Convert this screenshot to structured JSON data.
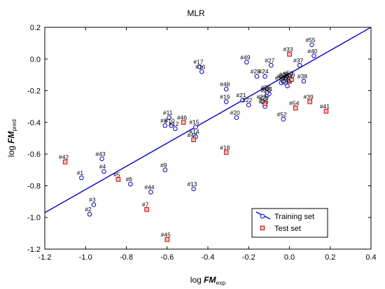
{
  "chart_data": {
    "type": "scatter",
    "title": "MLR",
    "xlabel": {
      "prefix": "log ",
      "italic": "FM",
      "sub": "exp"
    },
    "ylabel": {
      "prefix": "log ",
      "italic": "FM",
      "sub": "pred"
    },
    "xlim": [
      -1.2,
      0.4
    ],
    "ylim": [
      -1.2,
      0.2
    ],
    "xticks": [
      "-1.2",
      "-1.0",
      "-0.8",
      "-0.6",
      "-0.4",
      "-0.2",
      "0.0",
      "0.2",
      "0.4"
    ],
    "yticks": [
      "0.2",
      "0.0",
      "-0.2",
      "-0.4",
      "-0.6",
      "-0.8",
      "-1.0",
      "-1.2"
    ],
    "grid": false,
    "legend_position": "bottom-right",
    "colors": {
      "training": "#0000c8",
      "test": "#cc0000",
      "fit_line": "#0000c8",
      "test_fill": "#ffc0c0"
    },
    "fit_line": {
      "x": [
        -1.2,
        0.4
      ],
      "y": [
        -0.97,
        0.2
      ]
    },
    "series": [
      {
        "name": "Training set",
        "marker": "circle",
        "points": [
          {
            "label": "#1",
            "x": -1.02,
            "y": -0.75
          },
          {
            "label": "#2",
            "x": -0.98,
            "y": -0.98
          },
          {
            "label": "#3",
            "x": -0.96,
            "y": -0.92
          },
          {
            "label": "#4",
            "x": -0.91,
            "y": -0.71
          },
          {
            "label": "#6",
            "x": -0.78,
            "y": -0.79
          },
          {
            "label": "#8",
            "x": -0.61,
            "y": -0.42
          },
          {
            "label": "#9",
            "x": -0.61,
            "y": -0.7
          },
          {
            "label": "#10",
            "x": -0.58,
            "y": -0.42
          },
          {
            "label": "#11",
            "x": -0.59,
            "y": -0.37
          },
          {
            "label": "#12",
            "x": -0.56,
            "y": -0.44
          },
          {
            "label": "#13",
            "x": -0.47,
            "y": -0.82
          },
          {
            "label": "#14",
            "x": -0.46,
            "y": -0.49
          },
          {
            "label": "#15",
            "x": -0.46,
            "y": -0.43
          },
          {
            "label": "#16",
            "x": -0.43,
            "y": -0.08
          },
          {
            "label": "#17",
            "x": -0.44,
            "y": -0.05
          },
          {
            "label": "#19",
            "x": -0.31,
            "y": -0.27
          },
          {
            "label": "#20",
            "x": -0.26,
            "y": -0.37
          },
          {
            "label": "#21",
            "x": -0.23,
            "y": -0.26
          },
          {
            "label": "#22",
            "x": -0.2,
            "y": -0.29
          },
          {
            "label": "#23",
            "x": -0.13,
            "y": -0.27
          },
          {
            "label": "#24",
            "x": -0.12,
            "y": -0.11
          },
          {
            "label": "#25",
            "x": -0.04,
            "y": -0.15
          },
          {
            "label": "#26",
            "x": -0.02,
            "y": -0.13
          },
          {
            "label": "#27",
            "x": -0.09,
            "y": -0.04
          },
          {
            "label": "#28",
            "x": -0.16,
            "y": -0.11
          },
          {
            "label": "#30",
            "x": -0.11,
            "y": -0.23
          },
          {
            "label": "#31",
            "x": -0.1,
            "y": -0.22
          },
          {
            "label": "#32",
            "x": -0.02,
            "y": -0.15
          },
          {
            "label": "#34",
            "x": -0.03,
            "y": -0.14
          },
          {
            "label": "#35",
            "x": -0.12,
            "y": -0.3
          },
          {
            "label": "#36",
            "x": -0.11,
            "y": -0.21
          },
          {
            "label": "#37",
            "x": 0.05,
            "y": -0.04
          },
          {
            "label": "#38",
            "x": 0.07,
            "y": -0.14
          },
          {
            "label": "#40",
            "x": 0.12,
            "y": 0.02
          },
          {
            "label": "#43",
            "x": -0.92,
            "y": -0.63
          },
          {
            "label": "#44",
            "x": -0.68,
            "y": -0.84
          },
          {
            "label": "#48",
            "x": -0.31,
            "y": -0.19
          },
          {
            "label": "#49",
            "x": -0.21,
            "y": -0.02
          },
          {
            "label": "#50",
            "x": -0.01,
            "y": -0.17
          },
          {
            "label": "#52",
            "x": -0.03,
            "y": -0.38
          },
          {
            "label": "#53",
            "x": 0.0,
            "y": -0.12
          },
          {
            "label": "#55",
            "x": 0.11,
            "y": 0.09
          }
        ]
      },
      {
        "name": "Test set",
        "marker": "square",
        "points": [
          {
            "label": "#5",
            "x": -0.84,
            "y": -0.76
          },
          {
            "label": "#7",
            "x": -0.7,
            "y": -0.95
          },
          {
            "label": "#18",
            "x": -0.31,
            "y": -0.59
          },
          {
            "label": "#29",
            "x": -0.12,
            "y": -0.28
          },
          {
            "label": "#33",
            "x": 0.0,
            "y": 0.03
          },
          {
            "label": "#39",
            "x": 0.1,
            "y": -0.27
          },
          {
            "label": "#41",
            "x": 0.18,
            "y": -0.33
          },
          {
            "label": "#42",
            "x": -1.1,
            "y": -0.65
          },
          {
            "label": "#45",
            "x": -0.6,
            "y": -1.14
          },
          {
            "label": "#46",
            "x": -0.52,
            "y": -0.4
          },
          {
            "label": "#47",
            "x": -0.47,
            "y": -0.51
          },
          {
            "label": "#51",
            "x": 0.0,
            "y": -0.14
          },
          {
            "label": "#54",
            "x": 0.03,
            "y": -0.31
          },
          {
            "label": "#56",
            "x": 0.01,
            "y": -0.13
          }
        ]
      }
    ]
  }
}
